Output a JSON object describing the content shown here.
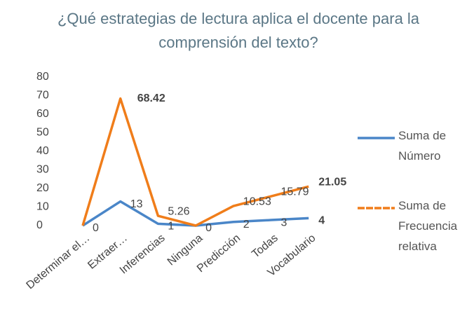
{
  "chart_data": {
    "type": "line",
    "title": "¿Qué estrategias de lectura aplica el docente para la comprensión del texto?",
    "categories": [
      "Determinar el…",
      "Extraer…",
      "Inferencias",
      "Ninguna",
      "Predicción",
      "Todas",
      "Vocabulario"
    ],
    "series": [
      {
        "name": "Suma de Número",
        "color": "#4a86c8",
        "values": [
          0,
          13,
          1,
          0,
          2,
          3,
          4
        ]
      },
      {
        "name": "Suma de Frecuencia relativa",
        "color": "#f07d1a",
        "values": [
          0,
          68.42,
          5.26,
          0,
          10.53,
          15.79,
          21.05
        ],
        "value_labels": [
          null,
          "68.42",
          "5.26",
          null,
          "10.53",
          "15.79",
          "21.05"
        ]
      }
    ],
    "ylim": [
      0,
      80
    ],
    "yticks": [
      0,
      10,
      20,
      30,
      40,
      50,
      60,
      70,
      80
    ],
    "grid": false,
    "legend": "right"
  }
}
